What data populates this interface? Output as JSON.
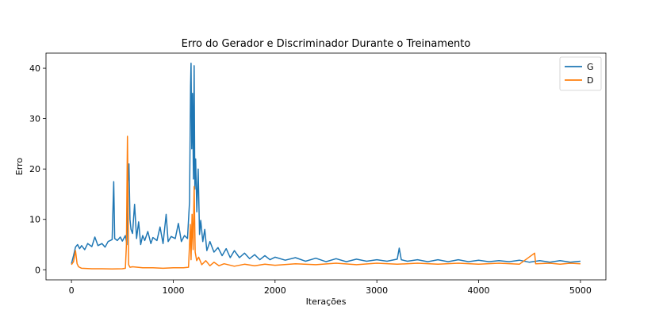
{
  "chart_data": {
    "type": "line",
    "title": "Erro do Gerador e Discriminador Durante o Treinamento",
    "xlabel": "Iterações",
    "ylabel": "Erro",
    "xlim": [
      -250,
      5250
    ],
    "ylim": [
      -2,
      43
    ],
    "x_ticks": [
      0,
      1000,
      2000,
      3000,
      4000,
      5000
    ],
    "x_tick_labels": [
      "0",
      "1000",
      "2000",
      "3000",
      "4000",
      "5000"
    ],
    "y_ticks": [
      0,
      10,
      20,
      30,
      40
    ],
    "y_tick_labels": [
      "0",
      "10",
      "20",
      "30",
      "40"
    ],
    "grid": false,
    "legend_position": "top-right",
    "series": [
      {
        "name": "G",
        "color": "#1f77b4",
        "points": [
          [
            0,
            1.2
          ],
          [
            20,
            2.8
          ],
          [
            40,
            4.5
          ],
          [
            60,
            5.0
          ],
          [
            80,
            4.2
          ],
          [
            100,
            4.8
          ],
          [
            130,
            4.0
          ],
          [
            160,
            5.2
          ],
          [
            200,
            4.6
          ],
          [
            230,
            6.5
          ],
          [
            260,
            4.8
          ],
          [
            300,
            5.2
          ],
          [
            330,
            4.5
          ],
          [
            360,
            5.6
          ],
          [
            400,
            6.0
          ],
          [
            415,
            17.5
          ],
          [
            425,
            6.2
          ],
          [
            450,
            5.8
          ],
          [
            480,
            6.5
          ],
          [
            500,
            5.7
          ],
          [
            530,
            6.8
          ],
          [
            545,
            5.0
          ],
          [
            555,
            17.5
          ],
          [
            565,
            21.0
          ],
          [
            575,
            10.0
          ],
          [
            585,
            8.0
          ],
          [
            600,
            7.2
          ],
          [
            620,
            13.0
          ],
          [
            640,
            6.2
          ],
          [
            660,
            9.5
          ],
          [
            680,
            5.0
          ],
          [
            700,
            6.8
          ],
          [
            720,
            5.8
          ],
          [
            750,
            7.6
          ],
          [
            780,
            5.2
          ],
          [
            800,
            6.4
          ],
          [
            840,
            5.8
          ],
          [
            870,
            8.5
          ],
          [
            900,
            5.2
          ],
          [
            930,
            11.0
          ],
          [
            950,
            5.6
          ],
          [
            980,
            6.6
          ],
          [
            1020,
            6.2
          ],
          [
            1050,
            9.2
          ],
          [
            1080,
            5.6
          ],
          [
            1110,
            6.8
          ],
          [
            1140,
            6.2
          ],
          [
            1160,
            13.5
          ],
          [
            1170,
            36.5
          ],
          [
            1175,
            41.0
          ],
          [
            1182,
            24.0
          ],
          [
            1190,
            35.0
          ],
          [
            1198,
            18.0
          ],
          [
            1205,
            40.5
          ],
          [
            1212,
            16.0
          ],
          [
            1220,
            22.0
          ],
          [
            1232,
            11.5
          ],
          [
            1245,
            20.0
          ],
          [
            1258,
            7.0
          ],
          [
            1270,
            9.8
          ],
          [
            1290,
            5.6
          ],
          [
            1310,
            8.0
          ],
          [
            1330,
            3.8
          ],
          [
            1360,
            5.6
          ],
          [
            1400,
            3.5
          ],
          [
            1440,
            4.4
          ],
          [
            1480,
            2.8
          ],
          [
            1520,
            4.2
          ],
          [
            1560,
            2.4
          ],
          [
            1600,
            3.8
          ],
          [
            1650,
            2.4
          ],
          [
            1700,
            3.3
          ],
          [
            1750,
            2.2
          ],
          [
            1800,
            3.0
          ],
          [
            1850,
            2.0
          ],
          [
            1900,
            2.8
          ],
          [
            1950,
            2.0
          ],
          [
            2000,
            2.5
          ],
          [
            2100,
            1.9
          ],
          [
            2200,
            2.4
          ],
          [
            2300,
            1.7
          ],
          [
            2400,
            2.3
          ],
          [
            2500,
            1.6
          ],
          [
            2600,
            2.2
          ],
          [
            2700,
            1.6
          ],
          [
            2800,
            2.1
          ],
          [
            2900,
            1.7
          ],
          [
            3000,
            2.0
          ],
          [
            3100,
            1.7
          ],
          [
            3200,
            2.1
          ],
          [
            3220,
            4.3
          ],
          [
            3240,
            2.0
          ],
          [
            3300,
            1.7
          ],
          [
            3400,
            2.0
          ],
          [
            3500,
            1.6
          ],
          [
            3600,
            2.0
          ],
          [
            3700,
            1.6
          ],
          [
            3800,
            2.0
          ],
          [
            3900,
            1.6
          ],
          [
            4000,
            1.9
          ],
          [
            4100,
            1.6
          ],
          [
            4200,
            1.8
          ],
          [
            4300,
            1.6
          ],
          [
            4400,
            1.9
          ],
          [
            4500,
            1.5
          ],
          [
            4600,
            1.8
          ],
          [
            4700,
            1.5
          ],
          [
            4800,
            1.8
          ],
          [
            4900,
            1.5
          ],
          [
            5000,
            1.7
          ]
        ]
      },
      {
        "name": "D",
        "color": "#ff7f0e",
        "points": [
          [
            0,
            1.0
          ],
          [
            20,
            1.6
          ],
          [
            40,
            3.8
          ],
          [
            55,
            1.2
          ],
          [
            70,
            0.6
          ],
          [
            100,
            0.3
          ],
          [
            200,
            0.2
          ],
          [
            300,
            0.2
          ],
          [
            400,
            0.15
          ],
          [
            500,
            0.2
          ],
          [
            530,
            0.3
          ],
          [
            540,
            5.0
          ],
          [
            550,
            26.5
          ],
          [
            556,
            14.0
          ],
          [
            562,
            1.0
          ],
          [
            575,
            0.5
          ],
          [
            600,
            0.6
          ],
          [
            700,
            0.4
          ],
          [
            800,
            0.4
          ],
          [
            900,
            0.3
          ],
          [
            1000,
            0.4
          ],
          [
            1100,
            0.4
          ],
          [
            1150,
            0.5
          ],
          [
            1160,
            5.0
          ],
          [
            1168,
            9.0
          ],
          [
            1175,
            2.0
          ],
          [
            1185,
            11.0
          ],
          [
            1195,
            4.0
          ],
          [
            1205,
            16.5
          ],
          [
            1215,
            3.5
          ],
          [
            1230,
            1.8
          ],
          [
            1250,
            2.5
          ],
          [
            1280,
            1.0
          ],
          [
            1320,
            1.8
          ],
          [
            1360,
            0.8
          ],
          [
            1400,
            1.5
          ],
          [
            1450,
            0.8
          ],
          [
            1500,
            1.2
          ],
          [
            1600,
            0.7
          ],
          [
            1700,
            1.1
          ],
          [
            1800,
            0.8
          ],
          [
            1900,
            1.1
          ],
          [
            2000,
            0.9
          ],
          [
            2200,
            1.2
          ],
          [
            2400,
            1.0
          ],
          [
            2600,
            1.3
          ],
          [
            2800,
            1.0
          ],
          [
            3000,
            1.3
          ],
          [
            3200,
            1.1
          ],
          [
            3400,
            1.3
          ],
          [
            3600,
            1.1
          ],
          [
            3800,
            1.3
          ],
          [
            4000,
            1.1
          ],
          [
            4200,
            1.3
          ],
          [
            4400,
            1.1
          ],
          [
            4550,
            3.3
          ],
          [
            4560,
            1.2
          ],
          [
            4700,
            1.3
          ],
          [
            4800,
            1.1
          ],
          [
            4900,
            1.3
          ],
          [
            5000,
            1.2
          ]
        ]
      }
    ]
  }
}
